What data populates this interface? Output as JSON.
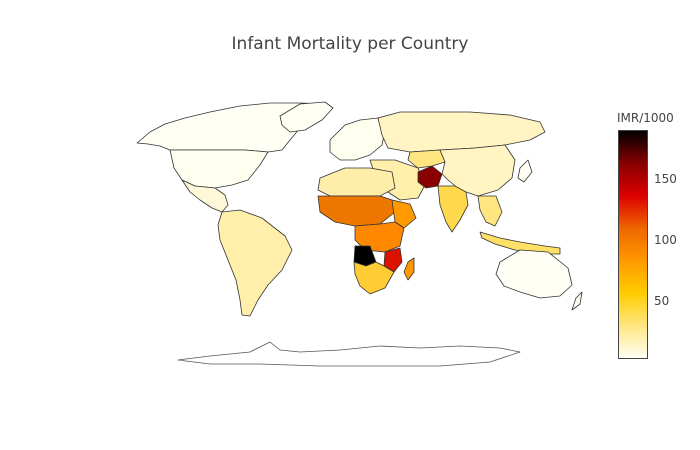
{
  "title": "Infant Mortality per Country",
  "colorbar": {
    "title": "IMR/1000",
    "min": 2,
    "max": 190,
    "ticks": [
      {
        "value": 50,
        "label": "50"
      },
      {
        "value": 100,
        "label": "100"
      },
      {
        "value": 150,
        "label": "150"
      }
    ],
    "colorscale": [
      "#fffff5",
      "#ffe680",
      "#ffcc00",
      "#ff9900",
      "#ee6600",
      "#dd0000",
      "#880000",
      "#000000"
    ]
  },
  "map": {
    "projection": "natural earth",
    "land_border_color": "#444444",
    "background": "#ffffff"
  }
}
